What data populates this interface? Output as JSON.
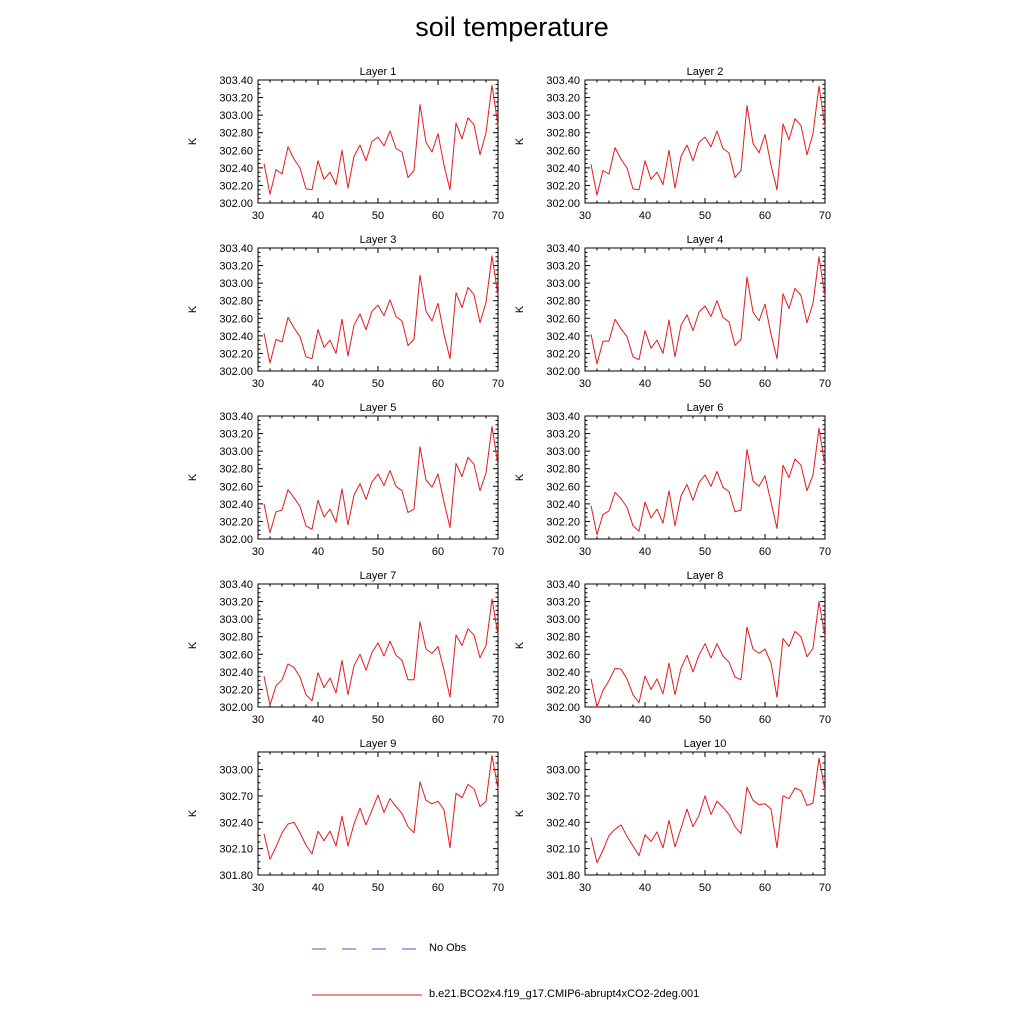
{
  "title": "soil temperature",
  "legend": [
    {
      "label": "No Obs",
      "color": "#5555cc",
      "style": "dashed"
    },
    {
      "label": "b.e21.BCO2x4.f19_g17.CMIP6-abrupt4xCO2-2deg.001",
      "color": "#e31a1c",
      "style": "solid"
    }
  ],
  "chart_data": [
    {
      "type": "line",
      "title": "Layer 1",
      "ylabel": "K",
      "xlim": [
        30,
        70
      ],
      "xticks": [
        30,
        40,
        50,
        60,
        70
      ],
      "ylim": [
        302.0,
        303.4
      ],
      "yticks": [
        302.0,
        302.2,
        302.4,
        302.6,
        302.8,
        303.0,
        303.2,
        303.4
      ],
      "ydecimals": 2,
      "x": [
        31,
        32,
        33,
        34,
        35,
        36,
        37,
        38,
        39,
        40,
        41,
        42,
        43,
        44,
        45,
        46,
        47,
        48,
        49,
        50,
        51,
        52,
        53,
        54,
        55,
        56,
        57,
        58,
        59,
        60,
        61,
        62,
        63,
        64,
        65,
        66,
        67,
        68,
        69,
        70
      ],
      "series": [
        {
          "color": "#e31a1c",
          "values": [
            302.45,
            302.1,
            302.38,
            302.33,
            302.64,
            302.5,
            302.4,
            302.16,
            302.15,
            302.48,
            302.27,
            302.35,
            302.21,
            302.6,
            302.17,
            302.53,
            302.66,
            302.48,
            302.7,
            302.75,
            302.65,
            302.82,
            302.62,
            302.58,
            302.29,
            302.37,
            303.12,
            302.69,
            302.58,
            302.79,
            302.43,
            302.15,
            302.91,
            302.73,
            302.97,
            302.89,
            302.55,
            302.8,
            303.34,
            302.88
          ]
        }
      ]
    },
    {
      "type": "line",
      "title": "Layer 2",
      "ylabel": "K",
      "xlim": [
        30,
        70
      ],
      "xticks": [
        30,
        40,
        50,
        60,
        70
      ],
      "ylim": [
        302.0,
        303.4
      ],
      "yticks": [
        302.0,
        302.2,
        302.4,
        302.6,
        302.8,
        303.0,
        303.2,
        303.4
      ],
      "ydecimals": 2,
      "x": [
        31,
        32,
        33,
        34,
        35,
        36,
        37,
        38,
        39,
        40,
        41,
        42,
        43,
        44,
        45,
        46,
        47,
        48,
        49,
        50,
        51,
        52,
        53,
        54,
        55,
        56,
        57,
        58,
        59,
        60,
        61,
        62,
        63,
        64,
        65,
        66,
        67,
        68,
        69,
        70
      ],
      "series": [
        {
          "color": "#e31a1c",
          "values": [
            302.44,
            302.09,
            302.37,
            302.33,
            302.63,
            302.5,
            302.4,
            302.16,
            302.15,
            302.48,
            302.27,
            302.35,
            302.21,
            302.6,
            302.17,
            302.53,
            302.66,
            302.48,
            302.69,
            302.75,
            302.64,
            302.82,
            302.62,
            302.57,
            302.29,
            302.37,
            303.11,
            302.68,
            302.57,
            302.78,
            302.43,
            302.15,
            302.9,
            302.72,
            302.96,
            302.88,
            302.55,
            302.79,
            303.33,
            302.87
          ]
        }
      ]
    },
    {
      "type": "line",
      "title": "Layer 3",
      "ylabel": "K",
      "xlim": [
        30,
        70
      ],
      "xticks": [
        30,
        40,
        50,
        60,
        70
      ],
      "ylim": [
        302.0,
        303.4
      ],
      "yticks": [
        302.0,
        302.2,
        302.4,
        302.6,
        302.8,
        303.0,
        303.2,
        303.4
      ],
      "ydecimals": 2,
      "x": [
        31,
        32,
        33,
        34,
        35,
        36,
        37,
        38,
        39,
        40,
        41,
        42,
        43,
        44,
        45,
        46,
        47,
        48,
        49,
        50,
        51,
        52,
        53,
        54,
        55,
        56,
        57,
        58,
        59,
        60,
        61,
        62,
        63,
        64,
        65,
        66,
        67,
        68,
        69,
        70
      ],
      "series": [
        {
          "color": "#e31a1c",
          "values": [
            302.43,
            302.09,
            302.36,
            302.33,
            302.61,
            302.49,
            302.39,
            302.16,
            302.14,
            302.47,
            302.27,
            302.35,
            302.2,
            302.59,
            302.17,
            302.52,
            302.65,
            302.47,
            302.68,
            302.75,
            302.63,
            302.81,
            302.62,
            302.57,
            302.29,
            302.36,
            303.09,
            302.68,
            302.57,
            302.77,
            302.42,
            302.14,
            302.89,
            302.72,
            302.95,
            302.87,
            302.55,
            302.78,
            303.31,
            302.86
          ]
        }
      ]
    },
    {
      "type": "line",
      "title": "Layer 4",
      "ylabel": "K",
      "xlim": [
        30,
        70
      ],
      "xticks": [
        30,
        40,
        50,
        60,
        70
      ],
      "ylim": [
        302.0,
        303.4
      ],
      "yticks": [
        302.0,
        302.2,
        302.4,
        302.6,
        302.8,
        303.0,
        303.2,
        303.4
      ],
      "ydecimals": 2,
      "x": [
        31,
        32,
        33,
        34,
        35,
        36,
        37,
        38,
        39,
        40,
        41,
        42,
        43,
        44,
        45,
        46,
        47,
        48,
        49,
        50,
        51,
        52,
        53,
        54,
        55,
        56,
        57,
        58,
        59,
        60,
        61,
        62,
        63,
        64,
        65,
        66,
        67,
        68,
        69,
        70
      ],
      "series": [
        {
          "color": "#e31a1c",
          "values": [
            302.42,
            302.08,
            302.34,
            302.34,
            302.59,
            302.48,
            302.39,
            302.16,
            302.13,
            302.46,
            302.26,
            302.35,
            302.2,
            302.58,
            302.16,
            302.52,
            302.64,
            302.46,
            302.67,
            302.74,
            302.62,
            302.8,
            302.61,
            302.56,
            302.29,
            302.36,
            303.07,
            302.67,
            302.57,
            302.76,
            302.42,
            302.14,
            302.88,
            302.71,
            302.94,
            302.86,
            302.55,
            302.77,
            303.3,
            302.85
          ]
        }
      ]
    },
    {
      "type": "line",
      "title": "Layer 5",
      "ylabel": "K",
      "xlim": [
        30,
        70
      ],
      "xticks": [
        30,
        40,
        50,
        60,
        70
      ],
      "ylim": [
        302.0,
        303.4
      ],
      "yticks": [
        302.0,
        302.2,
        302.4,
        302.6,
        302.8,
        303.0,
        303.2,
        303.4
      ],
      "ydecimals": 2,
      "x": [
        31,
        32,
        33,
        34,
        35,
        36,
        37,
        38,
        39,
        40,
        41,
        42,
        43,
        44,
        45,
        46,
        47,
        48,
        49,
        50,
        51,
        52,
        53,
        54,
        55,
        56,
        57,
        58,
        59,
        60,
        61,
        62,
        63,
        64,
        65,
        66,
        67,
        68,
        69,
        70
      ],
      "series": [
        {
          "color": "#e31a1c",
          "values": [
            302.4,
            302.07,
            302.31,
            302.33,
            302.56,
            302.47,
            302.37,
            302.15,
            302.11,
            302.44,
            302.25,
            302.34,
            302.19,
            302.57,
            302.16,
            302.5,
            302.63,
            302.45,
            302.65,
            302.74,
            302.61,
            302.78,
            302.6,
            302.55,
            302.3,
            302.34,
            303.05,
            302.67,
            302.59,
            302.74,
            302.42,
            302.13,
            302.86,
            302.71,
            302.93,
            302.85,
            302.55,
            302.75,
            303.28,
            302.84
          ]
        }
      ]
    },
    {
      "type": "line",
      "title": "Layer 6",
      "ylabel": "K",
      "xlim": [
        30,
        70
      ],
      "xticks": [
        30,
        40,
        50,
        60,
        70
      ],
      "ylim": [
        302.0,
        303.4
      ],
      "yticks": [
        302.0,
        302.2,
        302.4,
        302.6,
        302.8,
        303.0,
        303.2,
        303.4
      ],
      "ydecimals": 2,
      "x": [
        31,
        32,
        33,
        34,
        35,
        36,
        37,
        38,
        39,
        40,
        41,
        42,
        43,
        44,
        45,
        46,
        47,
        48,
        49,
        50,
        51,
        52,
        53,
        54,
        55,
        56,
        57,
        58,
        59,
        60,
        61,
        62,
        63,
        64,
        65,
        66,
        67,
        68,
        69,
        70
      ],
      "series": [
        {
          "color": "#e31a1c",
          "values": [
            302.38,
            302.05,
            302.28,
            302.32,
            302.53,
            302.46,
            302.36,
            302.15,
            302.09,
            302.42,
            302.24,
            302.34,
            302.18,
            302.55,
            302.15,
            302.49,
            302.62,
            302.44,
            302.64,
            302.73,
            302.6,
            302.77,
            302.59,
            302.54,
            302.31,
            302.33,
            303.02,
            302.66,
            302.6,
            302.72,
            302.42,
            302.12,
            302.84,
            302.7,
            302.91,
            302.84,
            302.55,
            302.73,
            303.26,
            302.83
          ]
        }
      ]
    },
    {
      "type": "line",
      "title": "Layer 7",
      "ylabel": "K",
      "xlim": [
        30,
        70
      ],
      "xticks": [
        30,
        40,
        50,
        60,
        70
      ],
      "ylim": [
        302.0,
        303.4
      ],
      "yticks": [
        302.0,
        302.2,
        302.4,
        302.6,
        302.8,
        303.0,
        303.2,
        303.4
      ],
      "ydecimals": 2,
      "x": [
        31,
        32,
        33,
        34,
        35,
        36,
        37,
        38,
        39,
        40,
        41,
        42,
        43,
        44,
        45,
        46,
        47,
        48,
        49,
        50,
        51,
        52,
        53,
        54,
        55,
        56,
        57,
        58,
        59,
        60,
        61,
        62,
        63,
        64,
        65,
        66,
        67,
        68,
        69,
        70
      ],
      "series": [
        {
          "color": "#e31a1c",
          "values": [
            302.35,
            302.02,
            302.24,
            302.31,
            302.49,
            302.45,
            302.34,
            302.14,
            302.07,
            302.39,
            302.22,
            302.33,
            302.16,
            302.53,
            302.14,
            302.47,
            302.6,
            302.42,
            302.62,
            302.73,
            302.58,
            302.75,
            302.59,
            302.53,
            302.31,
            302.31,
            302.97,
            302.66,
            302.61,
            302.69,
            302.42,
            302.11,
            302.82,
            302.7,
            302.89,
            302.82,
            302.56,
            302.7,
            303.23,
            302.82
          ]
        }
      ]
    },
    {
      "type": "line",
      "title": "Layer 8",
      "ylabel": "K",
      "xlim": [
        30,
        70
      ],
      "xticks": [
        30,
        40,
        50,
        60,
        70
      ],
      "ylim": [
        302.0,
        303.4
      ],
      "yticks": [
        302.0,
        302.2,
        302.4,
        302.6,
        302.8,
        303.0,
        303.2,
        303.4
      ],
      "ydecimals": 2,
      "x": [
        31,
        32,
        33,
        34,
        35,
        36,
        37,
        38,
        39,
        40,
        41,
        42,
        43,
        44,
        45,
        46,
        47,
        48,
        49,
        50,
        51,
        52,
        53,
        54,
        55,
        56,
        57,
        58,
        59,
        60,
        61,
        62,
        63,
        64,
        65,
        66,
        67,
        68,
        69,
        70
      ],
      "series": [
        {
          "color": "#e31a1c",
          "values": [
            302.32,
            302.0,
            302.19,
            302.3,
            302.44,
            302.43,
            302.32,
            302.14,
            302.05,
            302.35,
            302.2,
            302.32,
            302.15,
            302.5,
            302.14,
            302.44,
            302.59,
            302.4,
            302.59,
            302.72,
            302.56,
            302.72,
            302.58,
            302.51,
            302.34,
            302.31,
            302.91,
            302.66,
            302.61,
            302.66,
            302.5,
            302.11,
            302.78,
            302.69,
            302.86,
            302.8,
            302.57,
            302.67,
            303.2,
            302.8
          ]
        }
      ]
    },
    {
      "type": "line",
      "title": "Layer 9",
      "ylabel": "K",
      "xlim": [
        30,
        70
      ],
      "xticks": [
        30,
        40,
        50,
        60,
        70
      ],
      "ylim": [
        301.8,
        303.2
      ],
      "yticks": [
        301.8,
        302.1,
        302.4,
        302.7,
        303.0
      ],
      "ydecimals": 2,
      "x": [
        31,
        32,
        33,
        34,
        35,
        36,
        37,
        38,
        39,
        40,
        41,
        42,
        43,
        44,
        45,
        46,
        47,
        48,
        49,
        50,
        51,
        52,
        53,
        54,
        55,
        56,
        57,
        58,
        59,
        60,
        61,
        62,
        63,
        64,
        65,
        66,
        67,
        68,
        69,
        70
      ],
      "series": [
        {
          "color": "#e31a1c",
          "values": [
            302.27,
            301.98,
            302.12,
            302.28,
            302.38,
            302.4,
            302.28,
            302.14,
            302.04,
            302.3,
            302.19,
            302.3,
            302.13,
            302.47,
            302.13,
            302.38,
            302.56,
            302.37,
            302.54,
            302.71,
            302.51,
            302.67,
            302.58,
            302.5,
            302.35,
            302.28,
            302.86,
            302.65,
            302.61,
            302.64,
            302.54,
            302.11,
            302.73,
            302.68,
            302.83,
            302.78,
            302.58,
            302.64,
            303.16,
            302.78
          ]
        }
      ]
    },
    {
      "type": "line",
      "title": "Layer 10",
      "ylabel": "K",
      "xlim": [
        30,
        70
      ],
      "xticks": [
        30,
        40,
        50,
        60,
        70
      ],
      "ylim": [
        301.8,
        303.2
      ],
      "yticks": [
        301.8,
        302.1,
        302.4,
        302.7,
        303.0
      ],
      "ydecimals": 2,
      "x": [
        31,
        32,
        33,
        34,
        35,
        36,
        37,
        38,
        39,
        40,
        41,
        42,
        43,
        44,
        45,
        46,
        47,
        48,
        49,
        50,
        51,
        52,
        53,
        54,
        55,
        56,
        57,
        58,
        59,
        60,
        61,
        62,
        63,
        64,
        65,
        66,
        67,
        68,
        69,
        70
      ],
      "series": [
        {
          "color": "#e31a1c",
          "values": [
            302.23,
            301.94,
            302.08,
            302.25,
            302.32,
            302.37,
            302.24,
            302.13,
            302.02,
            302.26,
            302.18,
            302.29,
            302.11,
            302.42,
            302.12,
            302.33,
            302.55,
            302.35,
            302.48,
            302.7,
            302.49,
            302.64,
            302.57,
            302.49,
            302.35,
            302.27,
            302.8,
            302.65,
            302.6,
            302.61,
            302.55,
            302.11,
            302.7,
            302.67,
            302.79,
            302.76,
            302.59,
            302.62,
            303.13,
            302.76
          ]
        }
      ]
    }
  ]
}
